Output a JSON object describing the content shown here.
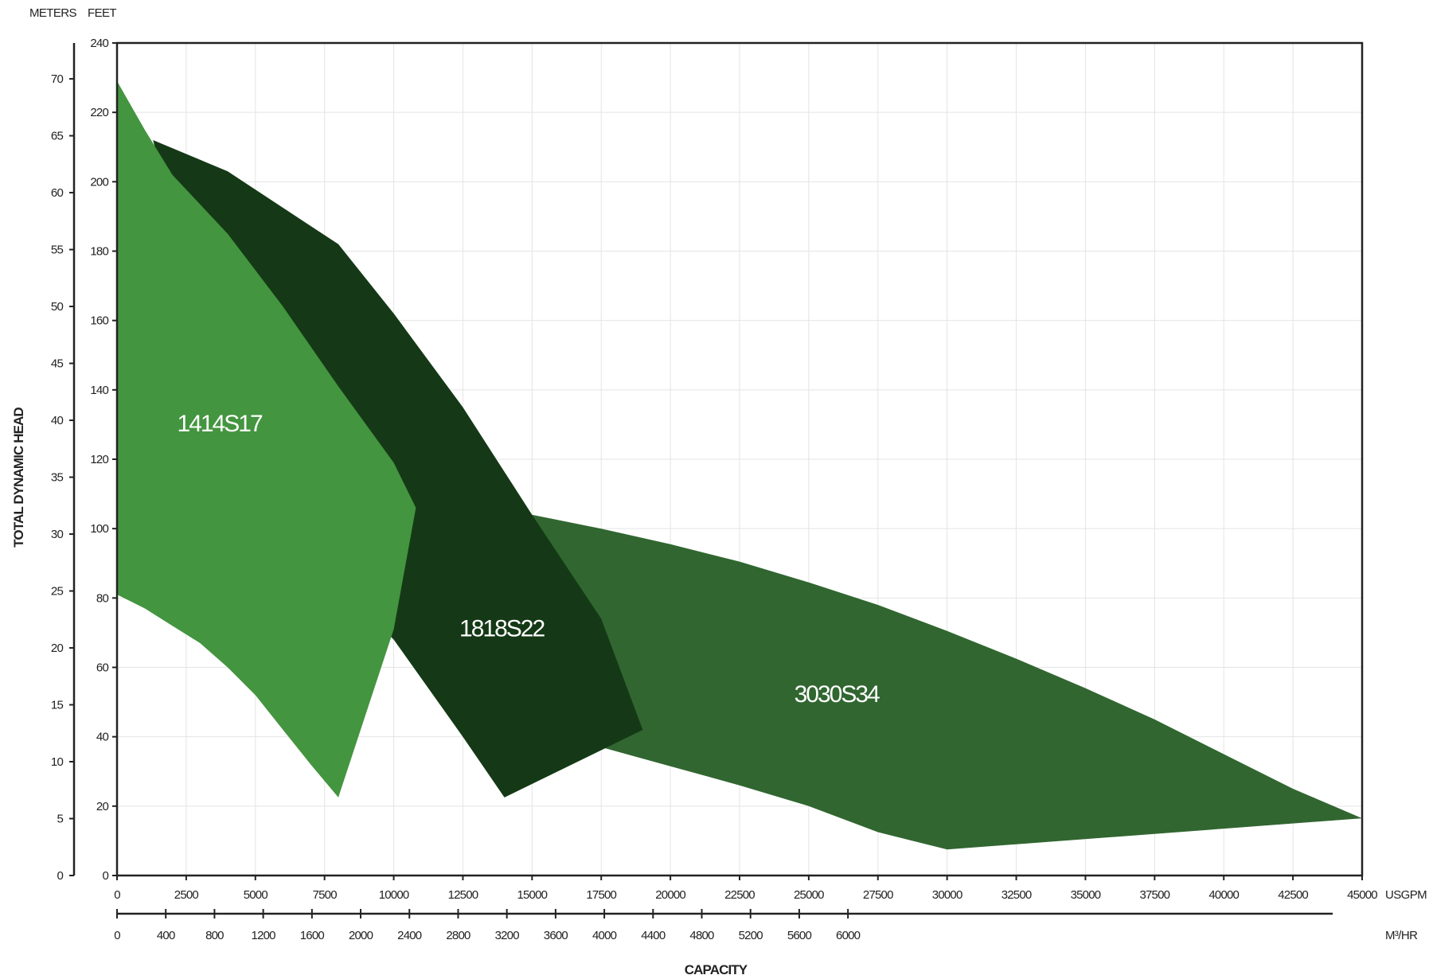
{
  "chart_data": {
    "type": "area",
    "xlabel": "CAPACITY",
    "ylabel": "TOTAL DYNAMIC HEAD",
    "x_unit_primary": "USGPM",
    "x_unit_secondary": "M³/HR",
    "y_unit_meters": "METERS",
    "y_unit_feet": "FEET",
    "xlim": [
      0,
      45000
    ],
    "ylim": [
      0,
      240
    ],
    "grid": true,
    "x_ticks_usgpm": [
      "0",
      "2500",
      "5000",
      "7500",
      "10000",
      "12500",
      "15000",
      "17500",
      "20000",
      "22500",
      "25000",
      "27500",
      "30000",
      "32500",
      "35000",
      "37500",
      "40000",
      "42500",
      "45000"
    ],
    "x_ticks_m3hr": [
      "0",
      "400",
      "800",
      "1200",
      "1600",
      "2000",
      "2400",
      "2800",
      "3200",
      "3600",
      "4000",
      "4400",
      "4800",
      "5200",
      "5600",
      "6000"
    ],
    "y_ticks_feet": [
      "0",
      "20",
      "40",
      "60",
      "80",
      "100",
      "120",
      "140",
      "160",
      "180",
      "200",
      "220",
      "240"
    ],
    "y_ticks_meters": [
      "0",
      "5",
      "10",
      "15",
      "20",
      "25",
      "30",
      "35",
      "40",
      "45",
      "50",
      "55",
      "60",
      "65",
      "70"
    ],
    "colors": {
      "1414S17": "#43953f",
      "1818S22": "#153916",
      "3030S34": "#316630",
      "axis": "#222222",
      "grid": "#e4e4e4"
    },
    "series": [
      {
        "name": "3030S34",
        "label_at": [
          26000,
          50
        ],
        "points": [
          [
            15000,
            104
          ],
          [
            17500,
            100
          ],
          [
            20000,
            95.5
          ],
          [
            22500,
            90.5
          ],
          [
            25000,
            84.5
          ],
          [
            27500,
            78
          ],
          [
            30000,
            70.5
          ],
          [
            32500,
            62.5
          ],
          [
            35000,
            54
          ],
          [
            37500,
            45
          ],
          [
            40000,
            35
          ],
          [
            42500,
            25
          ],
          [
            45000,
            16.5
          ],
          [
            30000,
            7.5
          ],
          [
            27500,
            12.5
          ],
          [
            25000,
            20
          ],
          [
            22500,
            26
          ],
          [
            20000,
            31.5
          ],
          [
            17500,
            37
          ],
          [
            15000,
            50
          ]
        ]
      },
      {
        "name": "1818S22",
        "label_at": [
          13900,
          69
        ],
        "points": [
          [
            1300,
            212
          ],
          [
            4000,
            203
          ],
          [
            8000,
            182
          ],
          [
            10000,
            162
          ],
          [
            12500,
            135
          ],
          [
            15000,
            104
          ],
          [
            17500,
            74
          ],
          [
            19000,
            42
          ],
          [
            14000,
            22.5
          ],
          [
            12500,
            40
          ],
          [
            10000,
            68
          ],
          [
            8500,
            80
          ],
          [
            6000,
            110
          ],
          [
            3000,
            160
          ]
        ]
      },
      {
        "name": "1414S17",
        "label_at": [
          3700,
          128
        ],
        "points": [
          [
            0,
            229
          ],
          [
            1000,
            215
          ],
          [
            2000,
            202
          ],
          [
            4000,
            185
          ],
          [
            6000,
            164
          ],
          [
            8000,
            141
          ],
          [
            10000,
            119
          ],
          [
            10800,
            106
          ],
          [
            10000,
            71
          ],
          [
            8000,
            22.5
          ],
          [
            7000,
            32
          ],
          [
            6000,
            42
          ],
          [
            5000,
            52
          ],
          [
            4000,
            60
          ],
          [
            3000,
            67
          ],
          [
            2000,
            72
          ],
          [
            1000,
            77
          ],
          [
            0,
            81
          ]
        ]
      }
    ]
  }
}
